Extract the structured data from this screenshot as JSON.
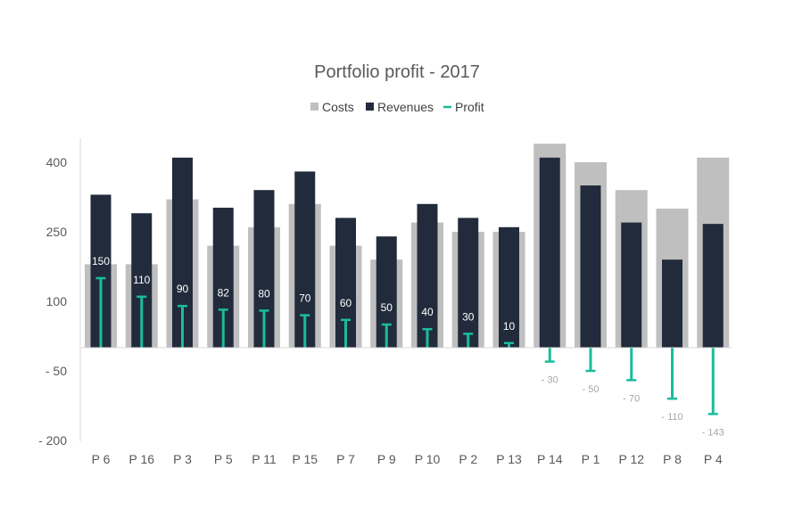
{
  "chart_data": {
    "type": "bar",
    "title": "Portfolio profit - 2017",
    "legend": [
      "Costs",
      "Revenues",
      "Profit"
    ],
    "legend_position": "top",
    "categories": [
      "P 6",
      "P 16",
      "P 3",
      "P 5",
      "P 11",
      "P 15",
      "P 7",
      "P 9",
      "P 10",
      "P 2",
      "P 13",
      "P 14",
      "P 1",
      "P 12",
      "P 8",
      "P 4"
    ],
    "series": [
      {
        "name": "Costs",
        "type": "bar",
        "color": "#bfbfbf",
        "values": [
          180,
          180,
          320,
          220,
          260,
          310,
          220,
          190,
          270,
          250,
          250,
          440,
          400,
          340,
          300,
          410
        ]
      },
      {
        "name": "Revenues",
        "type": "bar",
        "color": "#222b3b",
        "values": [
          330,
          290,
          410,
          302,
          340,
          380,
          280,
          240,
          310,
          280,
          260,
          410,
          350,
          270,
          190,
          267
        ]
      },
      {
        "name": "Profit",
        "type": "errorbar",
        "color": "#1abc9c",
        "values": [
          150,
          110,
          90,
          82,
          80,
          70,
          60,
          50,
          40,
          30,
          10,
          -30,
          -50,
          -70,
          -110,
          -143
        ],
        "labels": [
          "150",
          "110",
          "90",
          "82",
          "80",
          "70",
          "60",
          "50",
          "40",
          "30",
          "10",
          "- 30",
          "- 50",
          "- 70",
          "- 110",
          "- 143"
        ]
      }
    ],
    "y_ticks": [
      400,
      250,
      100,
      -50,
      -200
    ],
    "y_tick_labels": [
      "400",
      "250",
      "100",
      "- 50",
      "- 200"
    ],
    "ylim": [
      -200,
      450
    ],
    "grid": false
  }
}
